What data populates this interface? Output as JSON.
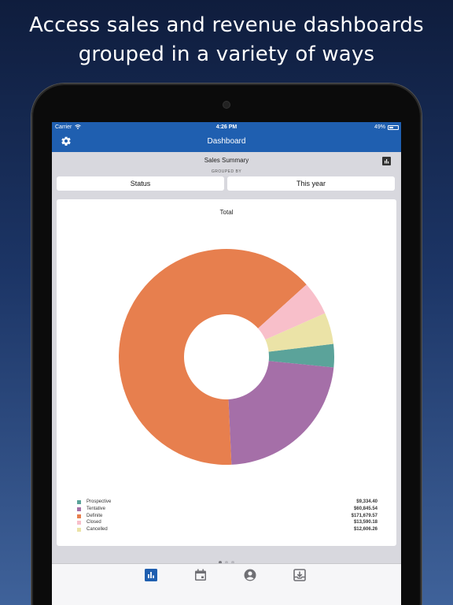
{
  "headline": {
    "line1": "Access sales and revenue dashboards",
    "line2": "grouped in a variety of ways"
  },
  "status_bar": {
    "carrier": "Carrier",
    "time": "4:26 PM",
    "battery": "49%"
  },
  "nav": {
    "title": "Dashboard",
    "settings_icon": "gear-icon"
  },
  "summary": {
    "title": "Sales Summary",
    "grouped_by_label": "GROUPED BY",
    "group_option": "Status",
    "period_option": "This year",
    "chart_toggle_icon": "bar-chart-icon"
  },
  "chart_data": {
    "type": "pie",
    "title": "Total",
    "donut": true,
    "legend_position": "bottom",
    "categories": [
      "Prospective",
      "Tentative",
      "Definite",
      "Closed",
      "Cancelled"
    ],
    "values": [
      9334.4,
      60845.54,
      171679.57,
      13590.18,
      12606.26
    ],
    "value_labels": [
      "$9,334.40",
      "$60,845.54",
      "$171,679.57",
      "$13,590.18",
      "$12,606.26"
    ],
    "colors": [
      "#5ba39a",
      "#a56fa8",
      "#e77f4e",
      "#f8bfca",
      "#ebe3a7"
    ]
  },
  "pager": {
    "pages": 3,
    "current": 1
  },
  "tabbar": {
    "icons": [
      "bar-chart-icon",
      "calendar-icon",
      "account-icon",
      "inbox-download-icon"
    ],
    "active_color": "#1f5fb0",
    "inactive_color": "#6f6f74"
  }
}
